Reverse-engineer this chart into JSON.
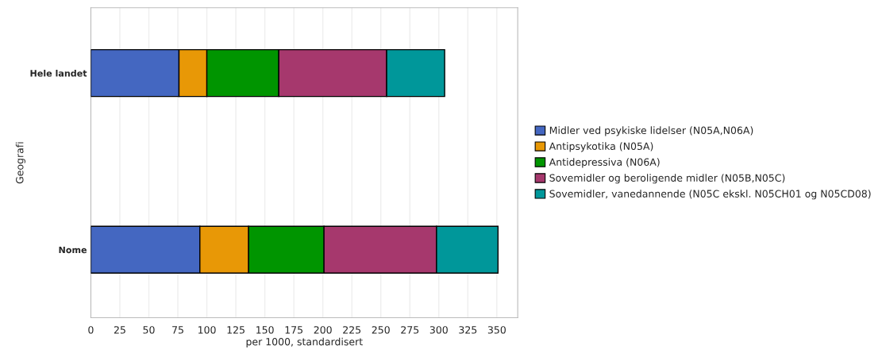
{
  "chart_data": {
    "type": "bar",
    "orientation": "horizontal",
    "stacked": true,
    "categories": [
      "Hele landet",
      "Nome"
    ],
    "series": [
      {
        "name": "Midler ved psykiske lidelser (N05A,N06A)",
        "color": "#4467c1",
        "values": [
          76,
          94
        ]
      },
      {
        "name": "Antipsykotika (N05A)",
        "color": "#e89806",
        "values": [
          24,
          42
        ]
      },
      {
        "name": "Antidepressiva (N06A)",
        "color": "#009500",
        "values": [
          62,
          65
        ]
      },
      {
        "name": "Sovemidler og beroligende midler (N05B,N05C)",
        "color": "#a6386d",
        "values": [
          93,
          97
        ]
      },
      {
        "name": "Sovemidler, vanedannende (N05C ekskl. N05CH01 og N05CD08)",
        "color": "#00979a",
        "values": [
          50,
          53
        ]
      }
    ],
    "xlabel": "per 1000, standardisert",
    "ylabel": "Geografi",
    "xlim": [
      0,
      368
    ],
    "xticks": [
      0,
      25,
      50,
      75,
      100,
      125,
      150,
      175,
      200,
      225,
      250,
      275,
      300,
      325,
      350
    ],
    "grid": "x",
    "legend": "right"
  }
}
